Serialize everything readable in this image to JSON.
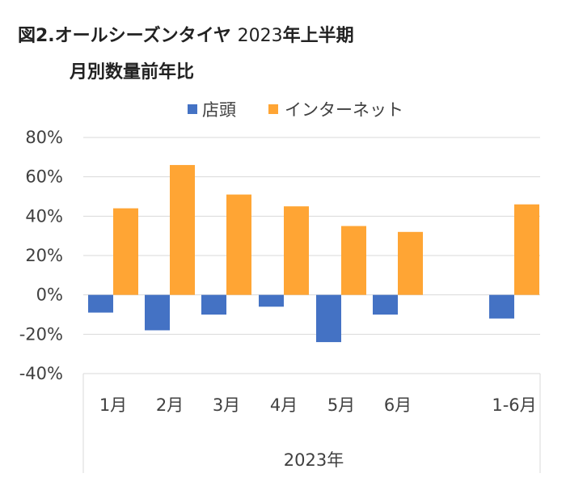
{
  "title": {
    "line1_prefix": "図2.",
    "line1_main": "オールシーズンタイヤ",
    "line1_year": "2023",
    "line1_suffix": "年上半期",
    "line2": "月別数量前年比"
  },
  "chart_data": {
    "type": "bar",
    "categories": [
      "1月",
      "2月",
      "3月",
      "4月",
      "5月",
      "6月",
      "1-6月"
    ],
    "series": [
      {
        "name": "店頭",
        "color": "#4472C4",
        "values": [
          -9,
          -18,
          -10,
          -6,
          -24,
          -10,
          -12
        ]
      },
      {
        "name": "インターネット",
        "color": "#FFA534",
        "values": [
          44,
          66,
          51,
          45,
          35,
          32,
          46
        ]
      }
    ],
    "ylim": [
      -40,
      80
    ],
    "yticks": [
      "80%",
      "60%",
      "40%",
      "20%",
      "0%",
      "-20%",
      "-40%"
    ],
    "ytick_values": [
      80,
      60,
      40,
      20,
      0,
      -20,
      -40
    ],
    "xgroup_label": "2023年",
    "legend_position": "top",
    "grid": true
  }
}
